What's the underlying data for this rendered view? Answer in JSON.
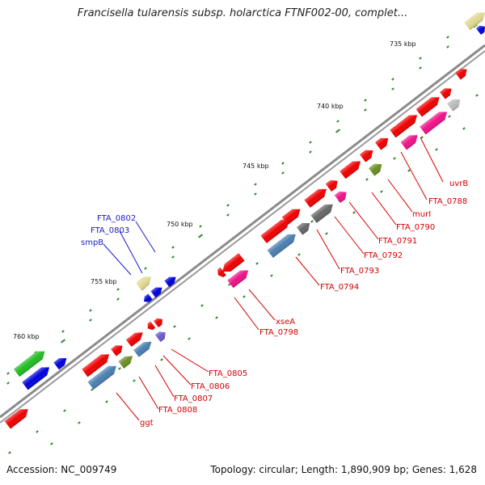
{
  "title": "Francisella tularensis subsp. holarctica FTNF002-00, complet...",
  "footer": {
    "accession": "Accession: NC_009749",
    "stats": "Topology: circular; Length: 1,890,909 bp; Genes: 1,628"
  },
  "ticks": [
    "735 kbp",
    "740 kbp",
    "745 kbp",
    "750 kbp",
    "755 kbp",
    "760 kbp"
  ],
  "colors": {
    "backbone": "#8a8a8a",
    "tick": "#2e8b2e",
    "label_red": "#d40000",
    "label_blue": "#1a1acc",
    "gene_red": "#ee0000",
    "gene_blue": "#0000dd",
    "gene_pink": "#ee1188",
    "gene_steel": "#4a7fb0",
    "gene_gray": "#666666",
    "gene_olive": "#6b8e23",
    "gene_khaki": "#e0d890",
    "gene_green": "#22bb22",
    "gene_lightgray": "#bbbbbb",
    "gene_purple": "#6a5acd"
  },
  "labels_red": [
    "uvrB",
    "FTA_0788",
    "murI",
    "FTA_0790",
    "FTA_0791",
    "FTA_0792",
    "FTA_0793",
    "FTA_0794",
    "xseA",
    "FTA_0798",
    "FTA_0805",
    "FTA_0806",
    "FTA_0807",
    "FTA_0808",
    "ggt"
  ],
  "labels_blue": [
    "FTA_0802",
    "FTA_0803",
    "smpB"
  ]
}
